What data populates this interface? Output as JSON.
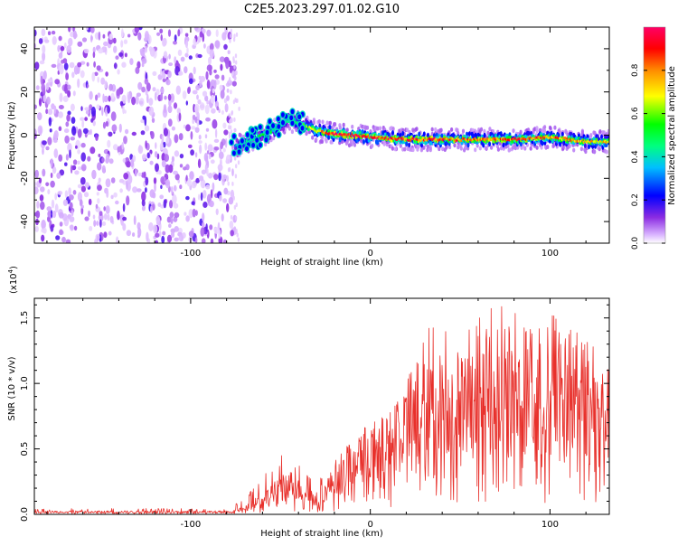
{
  "title": "C2E5.2023.297.01.02.G10",
  "colors": {
    "snr_line": "#e8302b",
    "axis": "#000000"
  },
  "chart_data": [
    {
      "type": "heatmap",
      "xlabel": "Height of straight line (km)",
      "ylabel": "Frequency (Hz)",
      "xlim": [
        -187,
        133
      ],
      "ylim": [
        -50,
        50
      ],
      "x_ticks": [
        -100,
        0,
        100
      ],
      "y_ticks": [
        -40,
        -20,
        0,
        20,
        40
      ],
      "colorbar": {
        "label": "Normalized spectral amplitude",
        "ticks": [
          0.0,
          0.2,
          0.4,
          0.6,
          0.8
        ],
        "range": [
          0,
          1
        ],
        "colormap": [
          "#ffffff",
          "#d9b3ff",
          "#8a2be2",
          "#0000ff",
          "#00bfff",
          "#00ff7f",
          "#00ff00",
          "#ffff00",
          "#ff8c00",
          "#ff0000",
          "#ff0066"
        ]
      },
      "noise_region_x": [
        -187,
        -75
      ],
      "signal_ridge": {
        "x": [
          -75,
          -65,
          -55,
          -45,
          -38,
          -30,
          -20,
          -10,
          0,
          20,
          40,
          60,
          80,
          100,
          120,
          133
        ],
        "y": [
          -5,
          -2,
          2,
          7,
          5,
          2,
          0.5,
          0,
          -1,
          -2,
          -2,
          -2,
          -2,
          -1,
          -3,
          -3
        ],
        "amplitude": [
          0.35,
          0.45,
          0.5,
          0.45,
          0.55,
          0.7,
          0.9,
          0.95,
          0.9,
          0.85,
          0.85,
          0.8,
          0.85,
          0.8,
          0.75,
          0.7
        ]
      }
    },
    {
      "type": "line",
      "xlabel": "Height of straight line (km)",
      "ylabel": "SNR (10 * v/v)",
      "y_scale_label": "(x10",
      "y_scale_exp": "4",
      "xlim": [
        -187,
        133
      ],
      "ylim": [
        0,
        1.65
      ],
      "x_ticks": [
        -100,
        0,
        100
      ],
      "y_ticks": [
        0.0,
        0.5,
        1.0,
        1.5
      ],
      "y_tick_labels": [
        "0.0",
        "0.5",
        "1.0",
        "1.5"
      ],
      "envelope": {
        "x": [
          -187,
          -140,
          -80,
          -70,
          -60,
          -50,
          -45,
          -40,
          -30,
          -25,
          -15,
          -10,
          0,
          10,
          20,
          30,
          40,
          50,
          60,
          70,
          80,
          90,
          100,
          110,
          120,
          133
        ],
        "y_mean": [
          0.02,
          0.02,
          0.02,
          0.04,
          0.12,
          0.22,
          0.25,
          0.2,
          0.12,
          0.2,
          0.32,
          0.45,
          0.5,
          0.55,
          0.7,
          0.85,
          0.9,
          0.9,
          0.95,
          0.95,
          0.95,
          0.9,
          0.9,
          0.95,
          0.85,
          0.8
        ],
        "y_peak": [
          0.04,
          0.05,
          0.04,
          0.12,
          0.3,
          0.45,
          0.48,
          0.38,
          0.25,
          0.35,
          0.5,
          0.62,
          0.6,
          0.75,
          1.0,
          1.4,
          1.5,
          1.3,
          1.55,
          1.6,
          1.62,
          1.45,
          1.55,
          1.55,
          1.35,
          1.6
        ]
      }
    }
  ]
}
